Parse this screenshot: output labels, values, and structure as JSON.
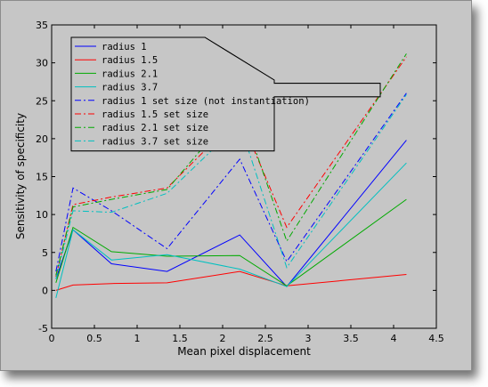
{
  "chart_data": {
    "type": "line",
    "xlabel": "Mean pixel displacement",
    "ylabel": "Sensitivity of specificity",
    "xlim": [
      0,
      4.5
    ],
    "ylim": [
      -5,
      35
    ],
    "xticks": [
      0,
      0.5,
      1,
      1.5,
      2,
      2.5,
      3,
      3.5,
      4,
      4.5
    ],
    "yticks": [
      -5,
      0,
      5,
      10,
      15,
      20,
      25,
      30,
      35
    ],
    "xtick_labels": [
      "0",
      "0.5",
      "1",
      "1.5",
      "2",
      "2.5",
      "3",
      "3.5",
      "4",
      "4.5"
    ],
    "ytick_labels": [
      "-5",
      "0",
      "5",
      "10",
      "15",
      "20",
      "25",
      "30",
      "35"
    ],
    "grid": false,
    "legend_placement": "top-left",
    "x": [
      0.05,
      0.25,
      0.7,
      1.35,
      2.2,
      2.75,
      4.15
    ],
    "series": [
      {
        "name": "radius 1",
        "color": "#0000ff",
        "style": "solid",
        "values": [
          1.5,
          8.0,
          3.5,
          2.5,
          7.3,
          0.5,
          19.8
        ]
      },
      {
        "name": "radius 1.5",
        "color": "#ff0000",
        "style": "solid",
        "values": [
          0.0,
          0.7,
          0.9,
          1.0,
          2.5,
          0.6,
          2.1
        ]
      },
      {
        "name": "radius 2.1",
        "color": "#00aa00",
        "style": "solid",
        "values": [
          1.0,
          8.3,
          5.1,
          4.5,
          4.6,
          0.6,
          12.0
        ]
      },
      {
        "name": "radius 3.7",
        "color": "#00c0c0",
        "style": "solid",
        "values": [
          -1.0,
          8.0,
          4.0,
          4.7,
          2.8,
          0.5,
          16.8
        ]
      },
      {
        "name": "radius 1 set size (not instantiation)",
        "color": "#0000ff",
        "style": "dashdot",
        "values": [
          2.5,
          13.5,
          10.5,
          5.5,
          17.3,
          3.8,
          26.0
        ]
      },
      {
        "name": "radius 1.5 set size",
        "color": "#ff0000",
        "style": "dashdot",
        "values": [
          1.8,
          11.3,
          12.3,
          13.5,
          23.0,
          8.3,
          30.8
        ]
      },
      {
        "name": "radius 2.1 set size",
        "color": "#00aa00",
        "style": "dashdot",
        "values": [
          2.0,
          11.0,
          12.0,
          13.3,
          24.5,
          6.5,
          31.2
        ]
      },
      {
        "name": "radius 3.7 set size",
        "color": "#00c0c0",
        "style": "dashdot",
        "values": [
          1.5,
          10.5,
          10.3,
          12.8,
          22.0,
          3.0,
          25.8
        ]
      }
    ]
  }
}
